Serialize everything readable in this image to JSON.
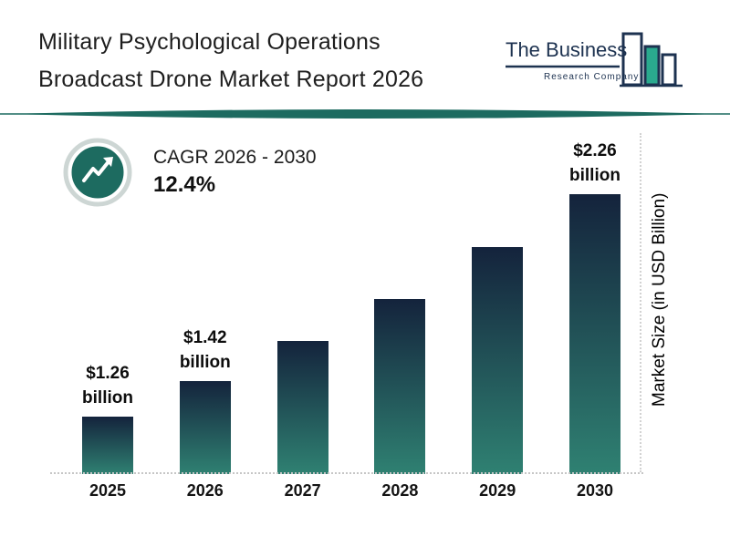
{
  "title": {
    "line1": "Military Psychological Operations",
    "line2": "Broadcast Drone Market Report 2026"
  },
  "logo": {
    "company_line1": "The Business",
    "company_line2": "Research Company"
  },
  "cagr": {
    "label": "CAGR 2026 - 2030",
    "value": "12.4%"
  },
  "brand": {
    "accent_teal": "#1d6b60",
    "navy": "#1d3250",
    "logo_bar_fill": "#2aa98e"
  },
  "chart_data": {
    "type": "bar",
    "title": "Military Psychological Operations Broadcast Drone Market Report 2026",
    "categories": [
      "2025",
      "2026",
      "2027",
      "2028",
      "2029",
      "2030"
    ],
    "values": [
      1.26,
      1.42,
      1.6,
      1.79,
      2.02,
      2.26
    ],
    "unit": "USD billion",
    "bar_labels": [
      "$1.26\nbillion",
      "$1.42\nbillion",
      "",
      "",
      "",
      "$2.26\nbillion"
    ],
    "xlabel": "",
    "ylabel": "Market Size (in USD Billion)",
    "ylim": [
      1.0,
      2.26
    ],
    "grid": false,
    "legend": false,
    "bar_gradient": {
      "top": "#14233c",
      "bottom": "#2f8172"
    }
  }
}
